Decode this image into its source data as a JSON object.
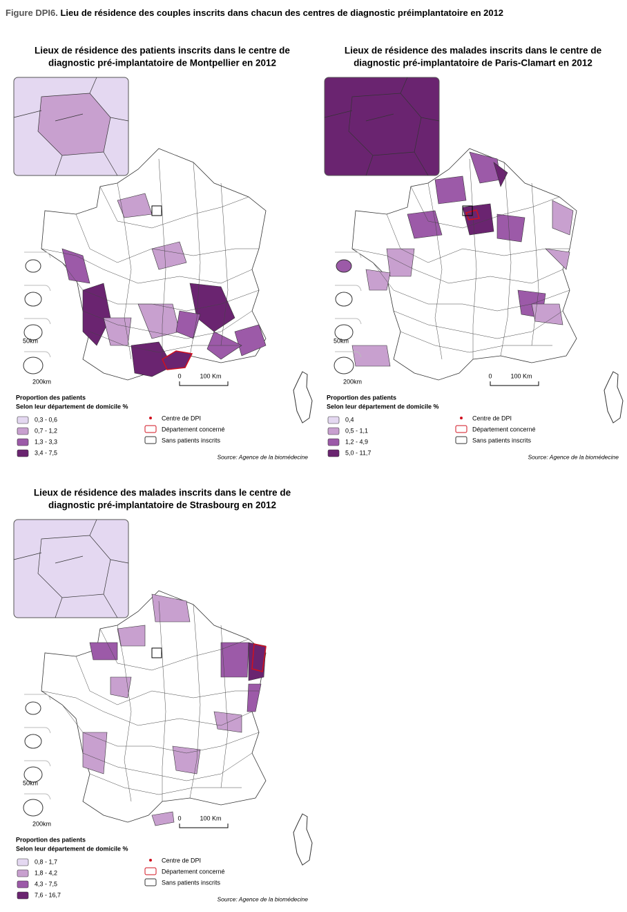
{
  "figure": {
    "label": "Figure DPI6.",
    "title": "Lieu de résidence des couples inscrits dans chacun des centres de diagnostic préimplantatoire en 2012"
  },
  "maps": [
    {
      "title_lines": [
        "Lieux de résidence des patients inscrits dans le centre de",
        "diagnostic pré-implantatoire de Montpellier en 2012"
      ],
      "legend_title": "Proportion des patients",
      "legend_subtitle": "Selon leur département de domicile %",
      "classes": [
        {
          "label": "0,3 - 0,6",
          "color": "#e4d8f1"
        },
        {
          "label": "0,7 - 1,2",
          "color": "#c8a0cf"
        },
        {
          "label": "1,3 - 3,3",
          "color": "#9c5aa8"
        },
        {
          "label": "3,4 - 7,5",
          "color": "#6a2470"
        }
      ],
      "markers": [
        "Centre de DPI",
        "Département concerné",
        "Sans patients inscrits"
      ],
      "scale": [
        "0",
        "100 Km"
      ],
      "inset_scales": [
        "50km",
        "200km"
      ],
      "source": "Source: Agence de la biomédecine"
    },
    {
      "title_lines": [
        "Lieux de résidence des malades inscrits dans le centre de",
        "diagnostic pré-implantatoire de Paris-Clamart en 2012"
      ],
      "legend_title": "Proportion des patients",
      "legend_subtitle": "Selon leur département de domicile %",
      "classes": [
        {
          "label": "0,4",
          "color": "#e4d8f1"
        },
        {
          "label": "0,5 - 1,1",
          "color": "#c8a0cf"
        },
        {
          "label": "1,2 - 4,9",
          "color": "#9c5aa8"
        },
        {
          "label": "5,0 - 11,7",
          "color": "#6a2470"
        }
      ],
      "markers": [
        "Centre de DPI",
        "Département concerné",
        "Sans patients inscrits"
      ],
      "scale": [
        "0",
        "100 Km"
      ],
      "inset_scales": [
        "50km",
        "200km"
      ],
      "source": "Source: Agence de la biomédecine"
    },
    {
      "title_lines": [
        "Lieux de résidence des malades inscrits dans le centre de",
        "diagnostic pré-implantatoire de Strasbourg en 2012"
      ],
      "legend_title": "Proportion des patients",
      "legend_subtitle": "Selon leur département de domicile %",
      "classes": [
        {
          "label": "0,8 - 1,7",
          "color": "#e4d8f1"
        },
        {
          "label": "1,8 - 4,2",
          "color": "#c8a0cf"
        },
        {
          "label": "4,3 - 7,5",
          "color": "#9c5aa8"
        },
        {
          "label": "7,6 - 16,7",
          "color": "#6a2470"
        }
      ],
      "markers": [
        "Centre de DPI",
        "Département concerné",
        "Sans patients inscrits"
      ],
      "scale": [
        "0",
        "100 Km"
      ],
      "inset_scales": [
        "50km",
        "200km"
      ],
      "source": "Source: Agence de la biomédecine"
    }
  ]
}
